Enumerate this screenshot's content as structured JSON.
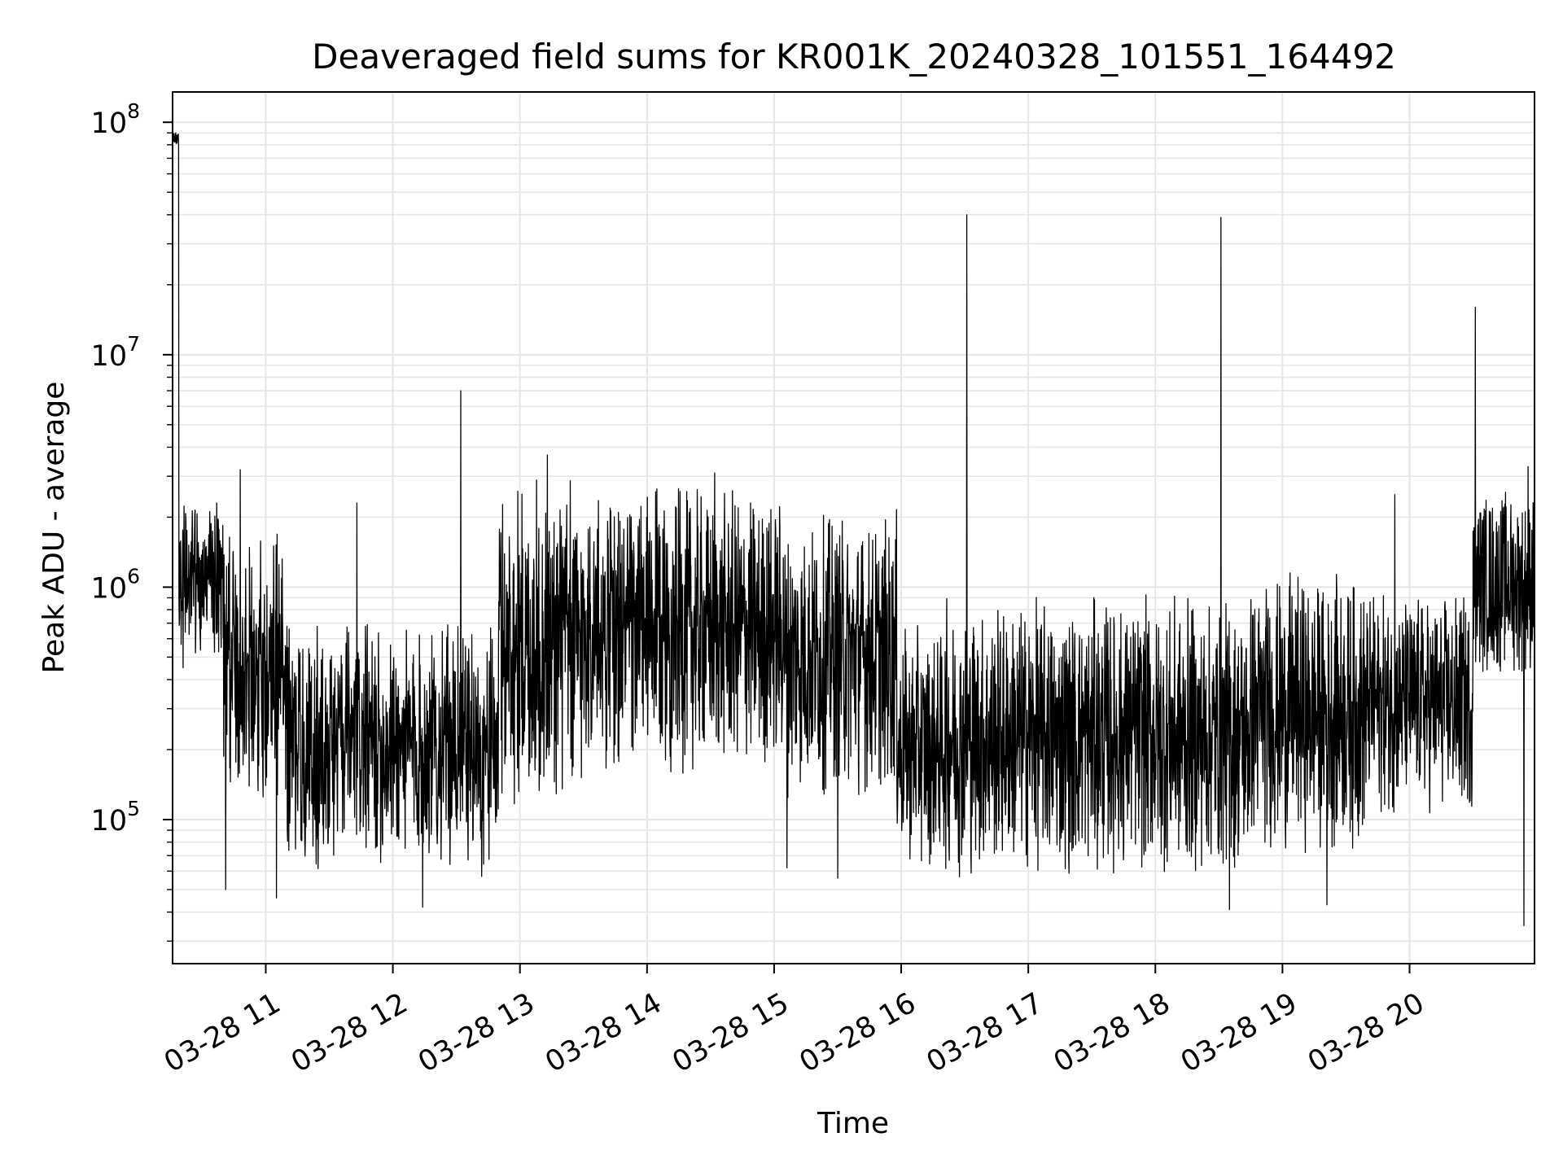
{
  "chart_data": {
    "type": "line",
    "title": "Deaveraged field sums for KR001K_20240328_101551_164492",
    "xlabel": "Time",
    "ylabel": "Peak ADU - average",
    "yscale": "log",
    "ylim": [
      24000,
      135000000
    ],
    "xlim": [
      "2024-03-28 10:16",
      "2024-03-28 20:59"
    ],
    "grid": true,
    "line_color": "#000000",
    "grid_color": "#e6e6e6",
    "x_ticks": [
      {
        "value": "2024-03-28 11:00",
        "label": "03-28 11"
      },
      {
        "value": "2024-03-28 12:00",
        "label": "03-28 12"
      },
      {
        "value": "2024-03-28 13:00",
        "label": "03-28 13"
      },
      {
        "value": "2024-03-28 14:00",
        "label": "03-28 14"
      },
      {
        "value": "2024-03-28 15:00",
        "label": "03-28 15"
      },
      {
        "value": "2024-03-28 16:00",
        "label": "03-28 16"
      },
      {
        "value": "2024-03-28 17:00",
        "label": "03-28 17"
      },
      {
        "value": "2024-03-28 18:00",
        "label": "03-28 18"
      },
      {
        "value": "2024-03-28 19:00",
        "label": "03-28 19"
      },
      {
        "value": "2024-03-28 20:00",
        "label": "03-28 20"
      }
    ],
    "y_ticks": [
      {
        "value": 100000,
        "base": "10",
        "exp": "5"
      },
      {
        "value": 1000000,
        "base": "10",
        "exp": "6"
      },
      {
        "value": 10000000,
        "base": "10",
        "exp": "7"
      },
      {
        "value": 100000000,
        "base": "10",
        "exp": "8"
      }
    ],
    "segments": [
      {
        "start": "2024-03-28 10:16",
        "end": "2024-03-28 10:19",
        "low": 80000000,
        "high": 90000000
      },
      {
        "start": "2024-03-28 10:19",
        "end": "2024-03-28 10:40",
        "low": 500000,
        "high": 2500000
      },
      {
        "start": "2024-03-28 10:40",
        "end": "2024-03-28 11:10",
        "low": 120000,
        "high": 1800000
      },
      {
        "start": "2024-03-28 11:10",
        "end": "2024-03-28 12:50",
        "low": 60000,
        "high": 700000
      },
      {
        "start": "2024-03-28 12:50",
        "end": "2024-03-28 13:30",
        "low": 100000,
        "high": 3200000
      },
      {
        "start": "2024-03-28 13:30",
        "end": "2024-03-28 15:05",
        "low": 150000,
        "high": 2800000
      },
      {
        "start": "2024-03-28 15:05",
        "end": "2024-03-28 15:58",
        "low": 120000,
        "high": 2200000
      },
      {
        "start": "2024-03-28 15:58",
        "end": "2024-03-28 16:20",
        "low": 60000,
        "high": 700000
      },
      {
        "start": "2024-03-28 16:20",
        "end": "2024-03-28 18:45",
        "low": 55000,
        "high": 950000
      },
      {
        "start": "2024-03-28 18:45",
        "end": "2024-03-28 19:40",
        "low": 70000,
        "high": 1200000
      },
      {
        "start": "2024-03-28 19:40",
        "end": "2024-03-28 20:30",
        "low": 100000,
        "high": 1000000
      },
      {
        "start": "2024-03-28 20:30",
        "end": "2024-03-28 20:59",
        "low": 400000,
        "high": 2800000
      }
    ],
    "spikes": [
      {
        "t": "2024-03-28 10:48",
        "value": 3200000
      },
      {
        "t": "2024-03-28 11:43",
        "value": 2300000
      },
      {
        "t": "2024-03-28 12:32",
        "value": 7000000
      },
      {
        "t": "2024-03-28 13:13",
        "value": 3700000
      },
      {
        "t": "2024-03-28 14:32",
        "value": 3100000
      },
      {
        "t": "2024-03-28 16:31",
        "value": 40000000
      },
      {
        "t": "2024-03-28 18:31",
        "value": 39000000
      },
      {
        "t": "2024-03-28 19:53",
        "value": 2500000
      },
      {
        "t": "2024-03-28 20:31",
        "value": 16000000
      },
      {
        "t": "2024-03-28 20:56",
        "value": 3300000
      }
    ],
    "dips": [
      {
        "t": "2024-03-28 10:21",
        "value": 450000
      },
      {
        "t": "2024-03-28 10:41",
        "value": 50000
      },
      {
        "t": "2024-03-28 11:05",
        "value": 46000
      },
      {
        "t": "2024-03-28 12:14",
        "value": 42000
      },
      {
        "t": "2024-03-28 12:42",
        "value": 57000
      },
      {
        "t": "2024-03-28 15:06",
        "value": 62000
      },
      {
        "t": "2024-03-28 15:30",
        "value": 56000
      },
      {
        "t": "2024-03-28 18:35",
        "value": 41000
      },
      {
        "t": "2024-03-28 19:21",
        "value": 43000
      },
      {
        "t": "2024-03-28 20:54",
        "value": 35000
      }
    ]
  }
}
